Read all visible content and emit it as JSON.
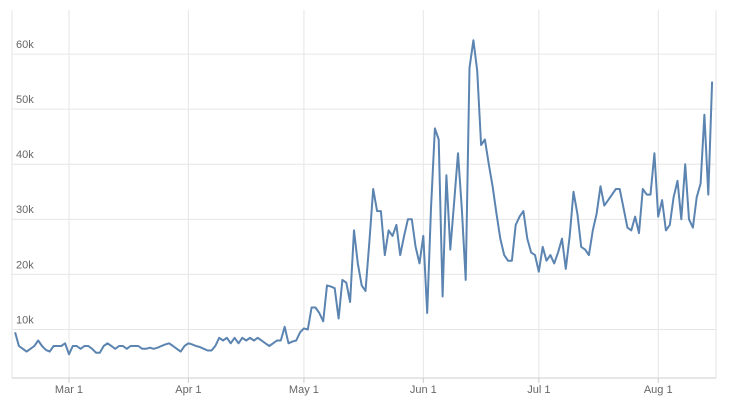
{
  "chart_data": {
    "type": "line",
    "x": [
      -14,
      -13,
      -12,
      -11,
      -10,
      -9,
      -8,
      -7,
      -6,
      -5,
      -4,
      -3,
      -2,
      -1,
      0,
      1,
      2,
      3,
      4,
      5,
      6,
      7,
      8,
      9,
      10,
      11,
      12,
      13,
      14,
      15,
      16,
      17,
      18,
      19,
      20,
      21,
      22,
      23,
      24,
      25,
      26,
      27,
      28,
      29,
      30,
      31,
      32,
      33,
      34,
      35,
      36,
      37,
      38,
      39,
      40,
      41,
      42,
      43,
      44,
      45,
      46,
      47,
      48,
      49,
      50,
      51,
      52,
      53,
      54,
      55,
      56,
      57,
      58,
      59,
      60,
      61,
      62,
      63,
      64,
      65,
      66,
      67,
      68,
      69,
      70,
      71,
      72,
      73,
      74,
      75,
      76,
      77,
      78,
      79,
      80,
      81,
      82,
      83,
      84,
      85,
      86,
      87,
      88,
      89,
      90,
      91,
      92,
      93,
      94,
      95,
      96,
      97,
      98,
      99,
      100,
      101,
      102,
      103,
      104,
      105,
      106,
      107,
      108,
      109,
      110,
      111,
      112,
      113,
      114,
      115,
      116,
      117,
      118,
      119,
      120,
      121,
      122,
      123,
      124,
      125,
      126,
      127,
      128,
      129,
      130,
      131,
      132,
      133,
      134,
      135,
      136,
      137,
      138,
      139,
      140,
      141,
      142,
      143,
      144,
      145,
      146,
      147,
      148,
      149,
      150,
      151,
      152,
      153,
      154,
      155,
      156,
      157,
      158,
      159,
      160,
      161,
      162,
      163,
      164,
      165,
      166,
      167
    ],
    "series": [
      {
        "color": "#5b84b1",
        "values": [
          9500,
          7000,
          6500,
          6000,
          6500,
          7000,
          8000,
          7000,
          6300,
          6000,
          7000,
          7000,
          7000,
          7500,
          5500,
          7000,
          7000,
          6500,
          7000,
          7000,
          6500,
          5800,
          5800,
          7000,
          7500,
          7000,
          6500,
          7000,
          7000,
          6500,
          7000,
          7000,
          7000,
          6500,
          6500,
          6700,
          6500,
          6700,
          7000,
          7300,
          7500,
          7000,
          6500,
          6000,
          7000,
          7500,
          7300,
          7000,
          6800,
          6500,
          6200,
          6200,
          7000,
          8500,
          8000,
          8500,
          7500,
          8500,
          7500,
          8500,
          8000,
          8500,
          8000,
          8500,
          8000,
          7500,
          7000,
          7500,
          8000,
          8000,
          10500,
          7500,
          7800,
          8000,
          9500,
          10200,
          10000,
          14000,
          14000,
          13000,
          11500,
          18000,
          17800,
          17500,
          12000,
          19000,
          18500,
          15000,
          28000,
          22000,
          18000,
          17000,
          26000,
          35500,
          31500,
          31500,
          23500,
          28000,
          27000,
          29000,
          23500,
          27000,
          30000,
          30000,
          25000,
          22000,
          27000,
          13000,
          32000,
          46500,
          44500,
          16000,
          38000,
          24500,
          33000,
          42000,
          32000,
          19000,
          57500,
          62500,
          57000,
          43500,
          44500,
          40000,
          36000,
          31000,
          26500,
          23500,
          22500,
          22500,
          29000,
          30500,
          31500,
          26500,
          24000,
          23500,
          20500,
          25000,
          22500,
          23500,
          22000,
          24000,
          26500,
          21000,
          27000,
          35000,
          31000,
          25000,
          24500,
          23500,
          28000,
          31000,
          36000,
          32500,
          33500,
          34500,
          35500,
          35500,
          32000,
          28500,
          28000,
          30500,
          27500,
          35500,
          34500,
          34500,
          42000,
          30500,
          33500,
          28000,
          29000,
          34000,
          37000,
          30000,
          40000,
          30000,
          28500,
          34000,
          36500,
          49000,
          34500,
          55000
        ]
      }
    ],
    "xlim": [
      -14.8,
      168
    ],
    "ylim": [
      1200,
      68000
    ],
    "xticks": [
      {
        "value": 0,
        "label": "Mar 1"
      },
      {
        "value": 31,
        "label": "Apr 1"
      },
      {
        "value": 61,
        "label": "May 1"
      },
      {
        "value": 92,
        "label": "Jun 1"
      },
      {
        "value": 122,
        "label": "Jul 1"
      },
      {
        "value": 153,
        "label": "Aug 1"
      }
    ],
    "yticks": [
      {
        "value": 10000,
        "label": "10k"
      },
      {
        "value": 20000,
        "label": "20k"
      },
      {
        "value": 30000,
        "label": "30k"
      },
      {
        "value": 40000,
        "label": "40k"
      },
      {
        "value": 50000,
        "label": "50k"
      },
      {
        "value": 60000,
        "label": "60k"
      }
    ],
    "grid": true
  }
}
